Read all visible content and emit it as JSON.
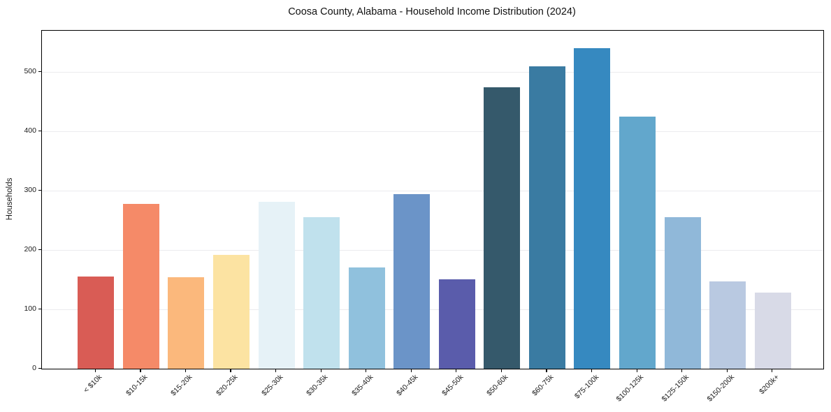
{
  "title": "Coosa County, Alabama - Household Income Distribution (2024)",
  "chart_data": {
    "type": "bar",
    "title": "Coosa County, Alabama - Household Income Distribution (2024)",
    "xlabel": "",
    "ylabel": "Households",
    "categories": [
      "< $10k",
      "$10-15k",
      "$15-20k",
      "$20-25k",
      "$25-30k",
      "$30-35k",
      "$35-40k",
      "$40-45k",
      "$45-50k",
      "$50-60k",
      "$60-75k",
      "$75-100k",
      "$100-125k",
      "$125-150k",
      "$150-200k",
      "$200k+"
    ],
    "values": [
      155,
      278,
      154,
      192,
      282,
      256,
      171,
      294,
      151,
      475,
      510,
      540,
      425,
      256,
      147,
      128
    ],
    "bar_colors": [
      "#d95c55",
      "#f58a68",
      "#fbb87c",
      "#fce3a2",
      "#e6f2f7",
      "#c0e1ed",
      "#90c1dd",
      "#6b94c8",
      "#5a5cab",
      "#35596b",
      "#3a7ba2",
      "#3689c0",
      "#62a7cc",
      "#90b8d9",
      "#b9c9e1",
      "#d8dae7"
    ],
    "yticks": [
      0,
      100,
      200,
      300,
      400,
      500
    ],
    "ylim": [
      0,
      570
    ],
    "grid": "horizontal",
    "legend": "none",
    "background": "#ffffff",
    "grid_color": "#ebebee",
    "axis_color": "#000000",
    "text_color": "#1a1a1a"
  }
}
